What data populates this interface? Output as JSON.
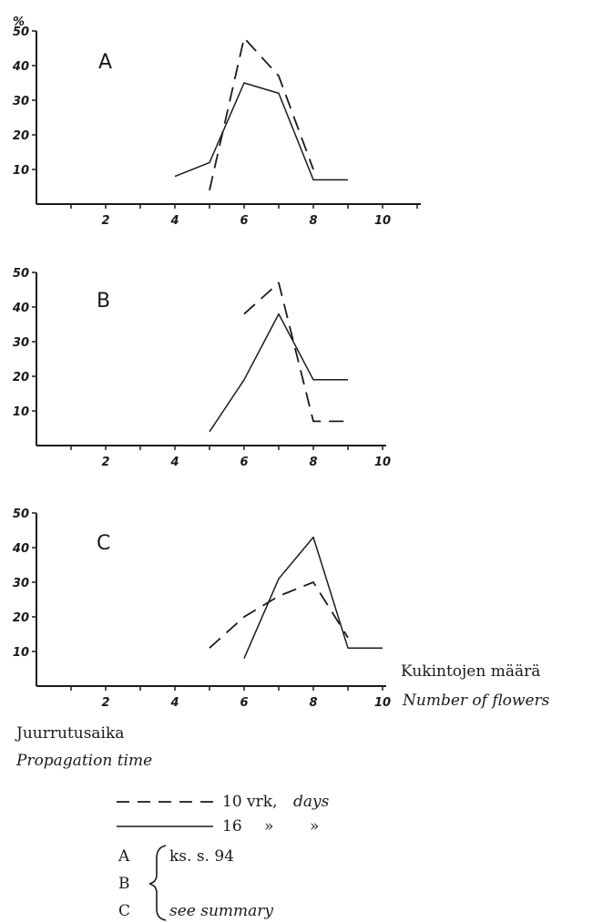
{
  "chart_data": [
    {
      "type": "line",
      "panel_label": "A",
      "ylabel": "%",
      "xlim": [
        0,
        11
      ],
      "ylim": [
        0,
        50
      ],
      "xticks": [
        2,
        4,
        6,
        8,
        10
      ],
      "yticks": [
        10,
        20,
        30,
        40,
        50
      ],
      "series": [
        {
          "style": "dashed",
          "points": [
            [
              5,
              4
            ],
            [
              6,
              48
            ],
            [
              7,
              37
            ],
            [
              8,
              10
            ]
          ]
        },
        {
          "style": "solid",
          "points": [
            [
              4,
              8
            ],
            [
              5,
              12
            ],
            [
              6,
              35
            ],
            [
              7,
              32
            ],
            [
              8,
              7
            ],
            [
              9,
              7
            ]
          ]
        }
      ]
    },
    {
      "type": "line",
      "panel_label": "B",
      "xlim": [
        0,
        10
      ],
      "ylim": [
        0,
        50
      ],
      "xticks": [
        2,
        4,
        6,
        8,
        10
      ],
      "yticks": [
        10,
        20,
        30,
        40,
        50
      ],
      "series": [
        {
          "style": "dashed",
          "points": [
            [
              6,
              38
            ],
            [
              7,
              47
            ],
            [
              8,
              7
            ],
            [
              9,
              7
            ]
          ]
        },
        {
          "style": "solid",
          "points": [
            [
              5,
              4
            ],
            [
              6,
              19
            ],
            [
              7,
              38
            ],
            [
              8,
              19
            ],
            [
              9,
              19
            ]
          ]
        }
      ]
    },
    {
      "type": "line",
      "panel_label": "C",
      "xlim": [
        0,
        10
      ],
      "ylim": [
        0,
        50
      ],
      "xticks": [
        2,
        4,
        6,
        8,
        10
      ],
      "yticks": [
        10,
        20,
        30,
        40,
        50
      ],
      "series": [
        {
          "style": "dashed",
          "points": [
            [
              5,
              11
            ],
            [
              6,
              20
            ],
            [
              7,
              26
            ],
            [
              8,
              30
            ],
            [
              9,
              14
            ]
          ]
        },
        {
          "style": "solid",
          "points": [
            [
              6,
              8
            ],
            [
              7,
              31
            ],
            [
              8,
              43
            ],
            [
              9,
              11
            ],
            [
              10,
              11
            ]
          ]
        }
      ]
    }
  ],
  "axis_titles": {
    "x_fi": "Kukintojen määrä",
    "x_en": "Number of flowers",
    "y_fi": "Juurrutusaika",
    "y_en": "Propagation time"
  },
  "legend": {
    "dashed_label": "10 vrk,",
    "dashed_label_en": "days",
    "solid_label": "16",
    "solid_ditto_1": "»",
    "solid_ditto_2": "»"
  },
  "notes": {
    "letters": [
      "A",
      "B",
      "C"
    ],
    "ref_fi": "ks. s. 94",
    "ref_en": "see summary"
  }
}
